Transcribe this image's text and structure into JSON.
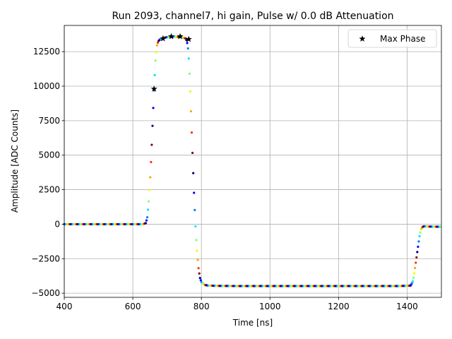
{
  "chart_data": {
    "type": "scatter",
    "title": "Run 2093, channel7, hi gain, Pulse w/ 0.0 dB Attenuation",
    "xlabel": "Time [ns]",
    "ylabel": "Amplitude [ADC Counts]",
    "xlim": [
      400,
      1500
    ],
    "ylim": [
      -5300,
      14400
    ],
    "xticks": [
      400,
      600,
      800,
      1000,
      1200,
      1400
    ],
    "yticks": [
      -5000,
      -2500,
      0,
      2500,
      5000,
      7500,
      10000,
      12500
    ],
    "grid": true,
    "legend": {
      "placement": "top-right",
      "entries": [
        "Max Phase"
      ]
    },
    "series": [
      {
        "style": "dense colored dots (jet colormap by phase)",
        "x": [
          400,
          450,
          500,
          550,
          600,
          630,
          638,
          642,
          646,
          650,
          654,
          658,
          662,
          666,
          670,
          674,
          680,
          690,
          700,
          720,
          740,
          755,
          760,
          763,
          766,
          769,
          772,
          775,
          778,
          781,
          784,
          788,
          792,
          796,
          800,
          810,
          820,
          850,
          900,
          1000,
          1100,
          1200,
          1300,
          1380,
          1410,
          1416,
          1420,
          1424,
          1428,
          1432,
          1436,
          1440,
          1445,
          1450,
          1460,
          1480,
          1500
        ],
        "y": [
          0,
          0,
          0,
          0,
          0,
          0,
          80,
          500,
          1500,
          3000,
          5000,
          7500,
          9800,
          11800,
          12900,
          13250,
          13400,
          13500,
          13550,
          13600,
          13550,
          13450,
          13000,
          12000,
          10500,
          8600,
          6500,
          4500,
          2500,
          800,
          -800,
          -2200,
          -3300,
          -3900,
          -4200,
          -4400,
          -4450,
          -4470,
          -4480,
          -4480,
          -4480,
          -4480,
          -4480,
          -4480,
          -4450,
          -4200,
          -3700,
          -3000,
          -2300,
          -1600,
          -900,
          -400,
          -200,
          -150,
          -170,
          -180,
          -190
        ]
      },
      {
        "name": "Max Phase",
        "marker": "star",
        "x": [
          662,
          688,
          712,
          738,
          763
        ],
        "y": [
          9800,
          13450,
          13600,
          13600,
          13400
        ]
      }
    ]
  },
  "colors": {
    "colormap": [
      "#00007f",
      "#0000ff",
      "#007fff",
      "#00e5ff",
      "#7fff7f",
      "#e5ff00",
      "#ffa500",
      "#ff3300",
      "#7f0000"
    ],
    "grid": "#b0b0b0",
    "star": "#000000"
  }
}
